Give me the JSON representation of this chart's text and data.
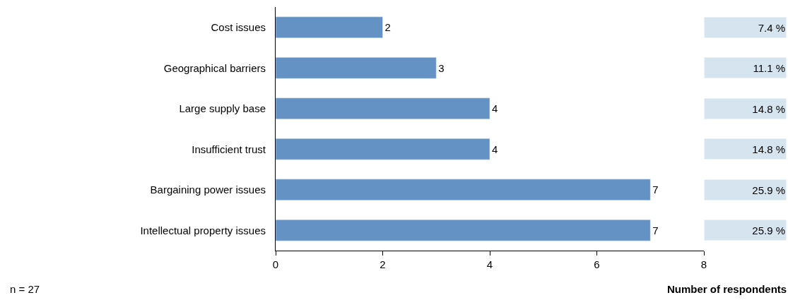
{
  "chart_data": {
    "type": "bar",
    "orientation": "horizontal",
    "categories": [
      "Cost issues",
      "Geographical barriers",
      "Large supply base",
      "Insufficient trust",
      "Bargaining power issues",
      "Intellectual property issues"
    ],
    "values": [
      2,
      3,
      4,
      4,
      7,
      7
    ],
    "color": "#6592c4",
    "data_labels": true,
    "xlim": [
      0,
      8
    ],
    "xticks": [
      0,
      2,
      4,
      6,
      8
    ],
    "xlabel": "Number of respondents",
    "annotations": [
      "7.4 %",
      "11.1 %",
      "14.8 %",
      "14.8 %",
      "25.9 %",
      "25.9 %",
      "n = 27"
    ]
  }
}
